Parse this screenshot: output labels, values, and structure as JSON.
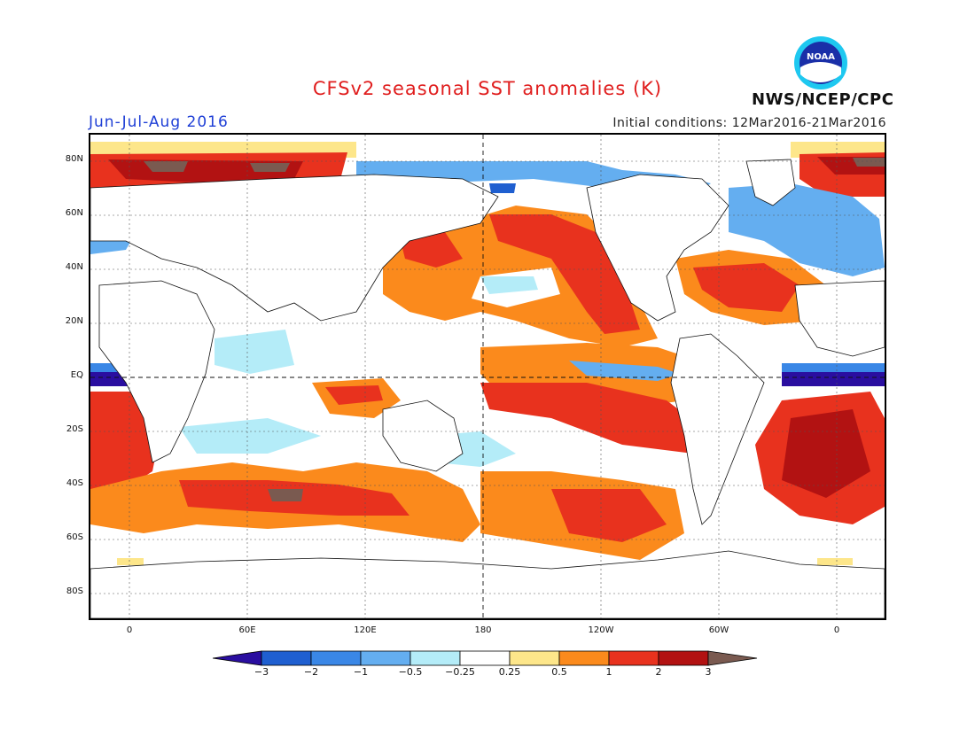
{
  "header": {
    "title": "CFSv2 seasonal SST anomalies (K)",
    "period": "Jun-Jul-Aug 2016",
    "initial_conditions": "Initial conditions: 12Mar2016-21Mar2016",
    "agency": "NWS/NCEP/CPC",
    "logo_text": "NOAA"
  },
  "map": {
    "lat_labels": [
      "80N",
      "60N",
      "40N",
      "20N",
      "EQ",
      "20S",
      "40S",
      "60S",
      "80S"
    ],
    "lon_labels": [
      "0",
      "60E",
      "120E",
      "180",
      "120W",
      "60W",
      "0"
    ]
  },
  "colorbar": {
    "ticks": [
      "-3",
      "-2",
      "-1",
      "-0.5",
      "-0.25",
      "0.25",
      "0.5",
      "1",
      "2",
      "3"
    ],
    "colors": [
      "#2a0ea0",
      "#1f5fd0",
      "#3a87e6",
      "#64aef0",
      "#b4ecf8",
      "#ffffff",
      "#fde68a",
      "#fb8a1c",
      "#e8321e",
      "#b21212",
      "#7a5a50"
    ]
  }
}
